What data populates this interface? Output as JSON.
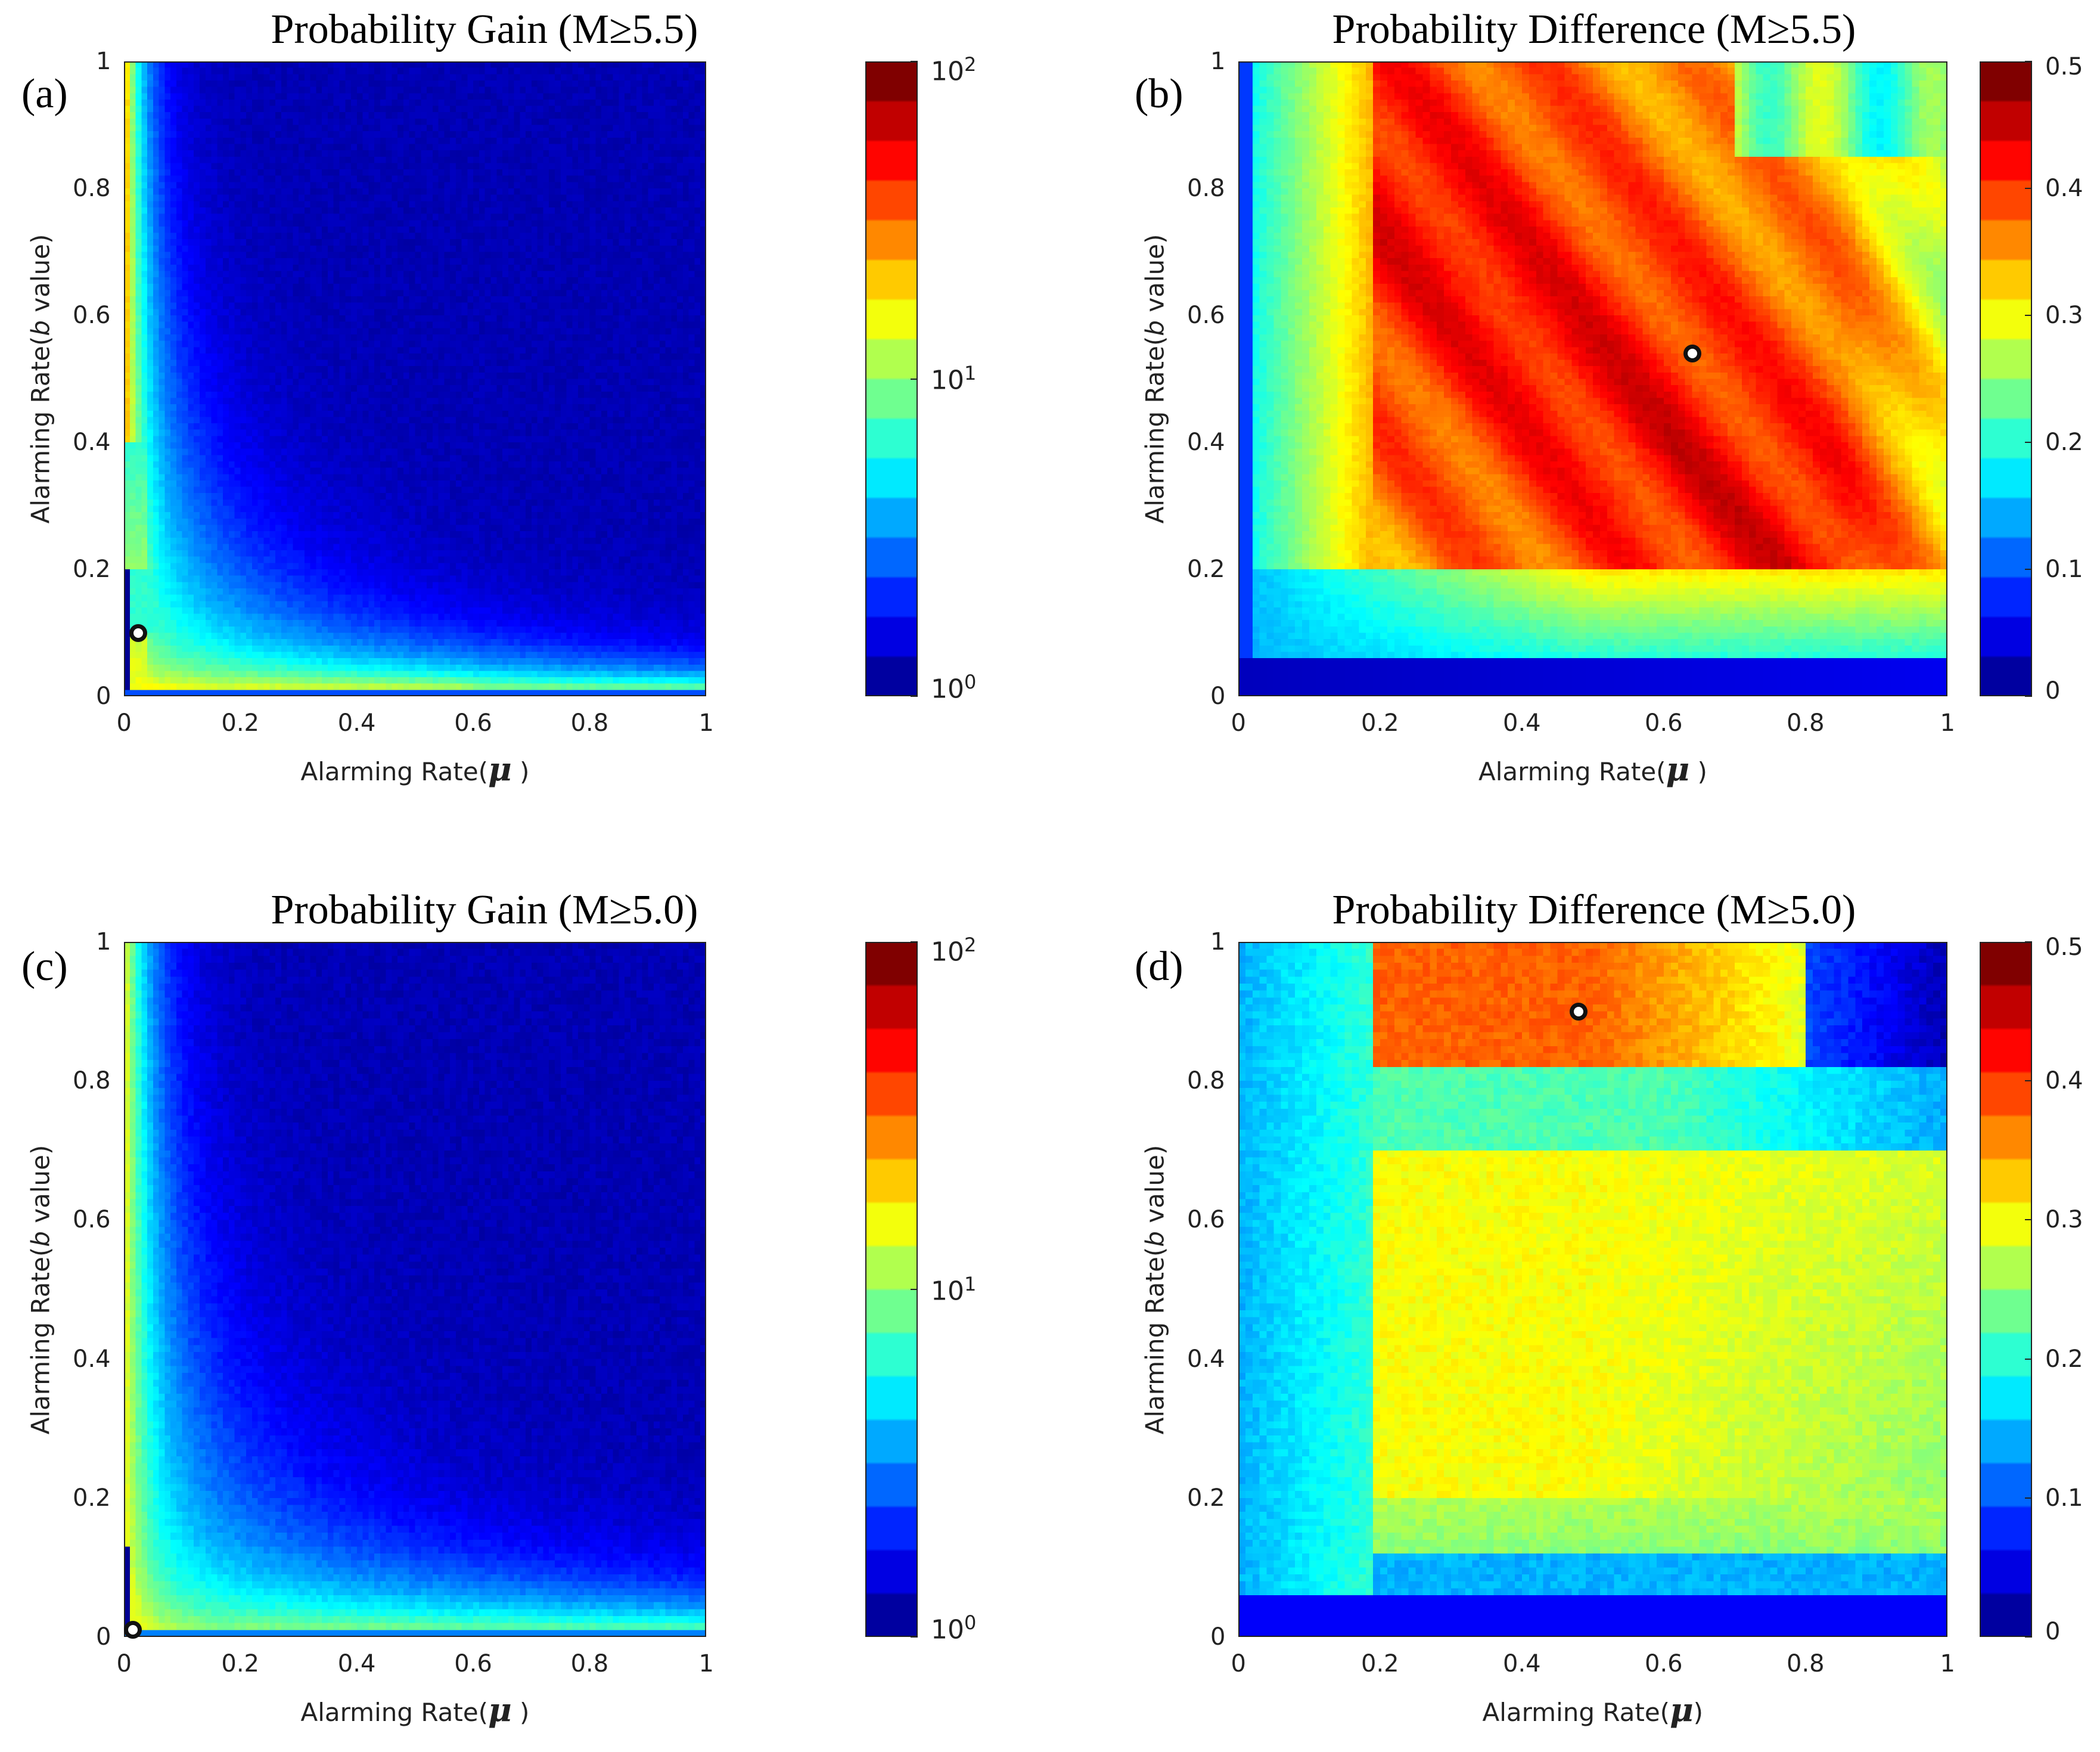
{
  "chart_data": [
    {
      "type": "heatmap",
      "panel_label": "(a)",
      "title": "Probability Gain (M≥5.5)",
      "xlabel_prefix": "Alarming Rate(",
      "xlabel_symbol": "μ",
      "xlabel_suffix": " )",
      "ylabel_prefix": "Alarming Rate(",
      "ylabel_italic": "b",
      "ylabel_suffix": " value)",
      "xlim": [
        0,
        1
      ],
      "ylim": [
        0,
        1
      ],
      "xticks": [
        "0",
        "0.2",
        "0.4",
        "0.6",
        "0.8",
        "1"
      ],
      "yticks": [
        "0",
        "0.2",
        "0.4",
        "0.6",
        "0.8",
        "1"
      ],
      "colorbar": {
        "scale": "log",
        "ticks": [
          {
            "base": "10",
            "exp": "0"
          },
          {
            "base": "10",
            "exp": "1"
          },
          {
            "base": "10",
            "exp": "2"
          }
        ],
        "range": [
          1,
          100
        ]
      },
      "pattern": "gain",
      "marker": {
        "x": 0.025,
        "y": 0.1
      }
    },
    {
      "type": "heatmap",
      "panel_label": "(b)",
      "title": "Probability Difference (M≥5.5)",
      "xlabel_prefix": "Alarming Rate(",
      "xlabel_symbol": "μ",
      "xlabel_suffix": " )",
      "ylabel_prefix": "Alarming Rate(",
      "ylabel_italic": "b",
      "ylabel_suffix": " value)",
      "xlim": [
        0,
        1
      ],
      "ylim": [
        0,
        1
      ],
      "xticks": [
        "0",
        "0.2",
        "0.4",
        "0.6",
        "0.8",
        "1"
      ],
      "yticks": [
        "0",
        "0.2",
        "0.4",
        "0.6",
        "0.8",
        "1"
      ],
      "colorbar": {
        "scale": "linear",
        "ticks": [
          "0",
          "0.1",
          "0.2",
          "0.3",
          "0.4",
          "0.5"
        ],
        "range": [
          0,
          0.5
        ]
      },
      "pattern": "diff55",
      "marker": {
        "x": 0.64,
        "y": 0.54
      }
    },
    {
      "type": "heatmap",
      "panel_label": "(c)",
      "title": "Probability Gain (M≥5.0)",
      "xlabel_prefix": "Alarming Rate(",
      "xlabel_symbol": "μ",
      "xlabel_suffix": " )",
      "ylabel_prefix": "Alarming Rate(",
      "ylabel_italic": "b",
      "ylabel_suffix": " value)",
      "xlim": [
        0,
        1
      ],
      "ylim": [
        0,
        1
      ],
      "xticks": [
        "0",
        "0.2",
        "0.4",
        "0.6",
        "0.8",
        "1"
      ],
      "yticks": [
        "0",
        "0.2",
        "0.4",
        "0.6",
        "0.8",
        "1"
      ],
      "colorbar": {
        "scale": "log",
        "ticks": [
          {
            "base": "10",
            "exp": "0"
          },
          {
            "base": "10",
            "exp": "1"
          },
          {
            "base": "10",
            "exp": "2"
          }
        ],
        "range": [
          1,
          100
        ]
      },
      "pattern": "gain50",
      "marker": {
        "x": 0.015,
        "y": 0.01
      }
    },
    {
      "type": "heatmap",
      "panel_label": "(d)",
      "title": "Probability Difference (M≥5.0)",
      "xlabel_prefix": "Alarming Rate(",
      "xlabel_symbol": "μ",
      "xlabel_suffix": ")",
      "ylabel_prefix": "Alarming Rate(",
      "ylabel_italic": "b",
      "ylabel_suffix": " value)",
      "xlim": [
        0,
        1
      ],
      "ylim": [
        0,
        1
      ],
      "xticks": [
        "0",
        "0.2",
        "0.4",
        "0.6",
        "0.8",
        "1"
      ],
      "yticks": [
        "0",
        "0.2",
        "0.4",
        "0.6",
        "0.8",
        "1"
      ],
      "colorbar": {
        "scale": "linear",
        "ticks": [
          "0",
          "0.1",
          "0.2",
          "0.3",
          "0.4",
          "0.5"
        ],
        "range": [
          0,
          0.5
        ]
      },
      "pattern": "diff50",
      "marker": {
        "x": 0.48,
        "y": 0.9
      }
    }
  ]
}
